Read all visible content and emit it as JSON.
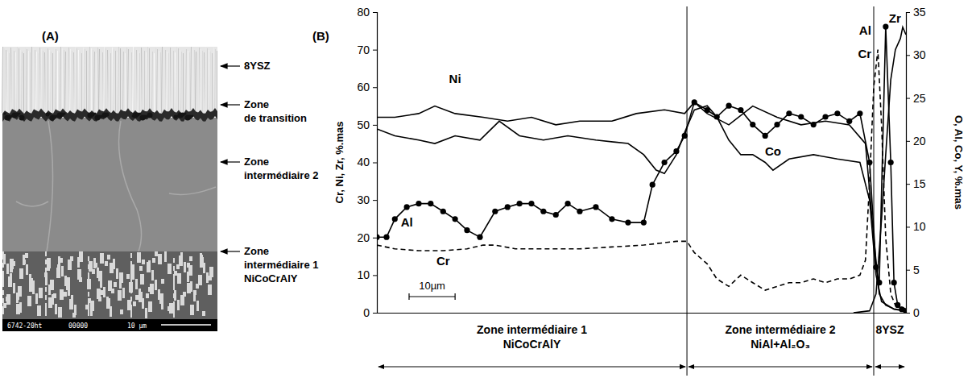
{
  "image_panel": {
    "panel_label": "(A)",
    "labels": [
      {
        "lines": [
          "8YSZ"
        ]
      },
      {
        "lines": [
          "Zone",
          "de transition"
        ]
      },
      {
        "lines": [
          "Zone",
          "intermédiaire 2"
        ]
      },
      {
        "lines": [
          "Zone",
          "intermédiaire 1",
          "NiCoCrAlY"
        ]
      }
    ],
    "info_bar": [
      "6742-20ht",
      "00000",
      "10 µm"
    ]
  },
  "chart_data": {
    "type": "line",
    "panel_label": "(B)",
    "y_label": "Cr, Ni, Zr, %.mas",
    "y2_label": "O, Al, Co, Y, %.mas",
    "xlim": [
      0,
      115
    ],
    "ylim": [
      0,
      80
    ],
    "yticks": [
      0,
      10,
      20,
      30,
      40,
      50,
      60,
      70,
      80
    ],
    "y2lim": [
      0,
      35
    ],
    "y2ticks": [
      0,
      5,
      10,
      15,
      20,
      25,
      30,
      35
    ],
    "grid": false,
    "tick_labels": "y",
    "scale_bar": {
      "label": "10µm",
      "length": 10
    },
    "zones": [
      {
        "label": "Zone intermédiaire 1",
        "sublabel": "NiCoCrAlY",
        "from": 0,
        "to": 67.4
      },
      {
        "label": "Zone intermédiaire 2",
        "sublabel": "NiAl+Al₂O₃",
        "from": 67.4,
        "to": 108
      },
      {
        "label": "8YSZ",
        "from": 108,
        "to": 115
      }
    ],
    "series": [
      {
        "name": "Ni",
        "color": "#000000",
        "line_style": "solid",
        "marker": "none",
        "x": [
          0,
          3.9,
          9.1,
          12.6,
          17.0,
          23.1,
          28.4,
          33.6,
          38.9,
          44.1,
          51.1,
          56.4,
          62.5,
          66.9,
          69.0,
          71.8,
          76.5,
          81.7,
          87.0,
          92.2,
          97.5,
          102.7,
          106.2,
          108.0,
          109.2,
          110.6,
          112.4,
          115.0
        ],
        "values": [
          52,
          52,
          53,
          55,
          53,
          52,
          51,
          52,
          50,
          51,
          51,
          53,
          54,
          53,
          56,
          53,
          50,
          55,
          52,
          50,
          51,
          50,
          45,
          20,
          5,
          2,
          1,
          0.5
        ]
      },
      {
        "name": "Co",
        "color": "#000000",
        "line_style": "solid",
        "marker": "none",
        "axis": "y2",
        "x": [
          0,
          3.9,
          9.1,
          12.6,
          17.0,
          22.4,
          26.6,
          31.0,
          36.2,
          41.5,
          47.6,
          54.6,
          58.0,
          60.7,
          62.5,
          65.1,
          66.9,
          69.0,
          71.8,
          73.9,
          76.5,
          79.1,
          81.7,
          84.4,
          86.1,
          89.6,
          94.9,
          100.1,
          105.0,
          107.1,
          108.5,
          109.7,
          112.4,
          115.0
        ],
        "values": [
          21.4,
          20.6,
          20.1,
          19.7,
          20.6,
          20.1,
          22.3,
          20.6,
          20.1,
          20.6,
          20.1,
          19.7,
          18.4,
          16.6,
          16.2,
          18.4,
          21.0,
          23.6,
          24.1,
          22.8,
          20.1,
          18.4,
          18.4,
          17.5,
          16.6,
          17.9,
          18.4,
          17.9,
          17.5,
          13.1,
          4.4,
          1.3,
          0.4,
          0.2
        ]
      },
      {
        "name": "Al",
        "color": "#000000",
        "line_style": "solid",
        "marker": "circle",
        "axis": "y2",
        "x": [
          0,
          2.1,
          3.9,
          6.5,
          9.1,
          11.7,
          14.4,
          17.0,
          19.6,
          22.4,
          25.7,
          28.4,
          31.0,
          33.6,
          36.2,
          38.9,
          41.5,
          44.1,
          47.6,
          51.1,
          54.6,
          58.0,
          59.9,
          62.5,
          65.1,
          66.9,
          69.0,
          71.8,
          73.9,
          76.5,
          79.1,
          81.7,
          84.4,
          87.0,
          89.6,
          92.2,
          94.9,
          97.5,
          100.1,
          102.7,
          105.0,
          107.1,
          108.5,
          109.2,
          110.6,
          111.7,
          112.4,
          113.2,
          114.1,
          115.0
        ],
        "values": [
          8.8,
          8.8,
          10.9,
          12.3,
          12.7,
          12.7,
          11.8,
          10.9,
          9.6,
          8.8,
          11.8,
          12.3,
          12.7,
          12.7,
          11.8,
          11.4,
          12.7,
          11.8,
          12.3,
          10.9,
          10.5,
          10.5,
          14.9,
          17.5,
          18.8,
          20.6,
          24.5,
          23.6,
          22.8,
          24.1,
          23.6,
          21.9,
          20.6,
          21.9,
          23.2,
          22.8,
          21.9,
          22.8,
          23.2,
          22.3,
          23.2,
          17.5,
          5.3,
          3.5,
          33.3,
          17.5,
          3.5,
          0.9,
          0.4,
          0.2
        ]
      },
      {
        "name": "Cr",
        "color": "#000000",
        "line_style": "dashed",
        "marker": "none",
        "x": [
          0,
          3.9,
          9.1,
          14.4,
          19.6,
          23.1,
          25.7,
          30.1,
          33.6,
          38.9,
          44.1,
          51.1,
          58.0,
          65.1,
          67.4,
          69.0,
          71.8,
          73.9,
          76.5,
          79.1,
          81.7,
          84.4,
          87.0,
          89.6,
          92.2,
          94.9,
          97.5,
          100.1,
          102.7,
          105.0,
          106.2,
          107.1,
          108.0,
          108.9,
          109.7,
          110.6,
          111.7,
          112.7,
          115.0
        ],
        "values": [
          18,
          17,
          16.5,
          16.5,
          17,
          18,
          18,
          17,
          17,
          17,
          17,
          17.5,
          18,
          19,
          19,
          16,
          13,
          9,
          7,
          10,
          8,
          6,
          7,
          8,
          8,
          9,
          8,
          9,
          9,
          10,
          14,
          35,
          60,
          70,
          50,
          20,
          5,
          2,
          1
        ]
      },
      {
        "name": "Zr",
        "color": "#000000",
        "line_style": "solid",
        "marker": "none",
        "x": [
          103.6,
          107.1,
          108.5,
          109.7,
          110.6,
          111.7,
          112.7,
          113.8,
          114.3,
          115.0
        ],
        "values": [
          0,
          0.5,
          5,
          25,
          42,
          62,
          70,
          73,
          76,
          74
        ]
      }
    ]
  }
}
